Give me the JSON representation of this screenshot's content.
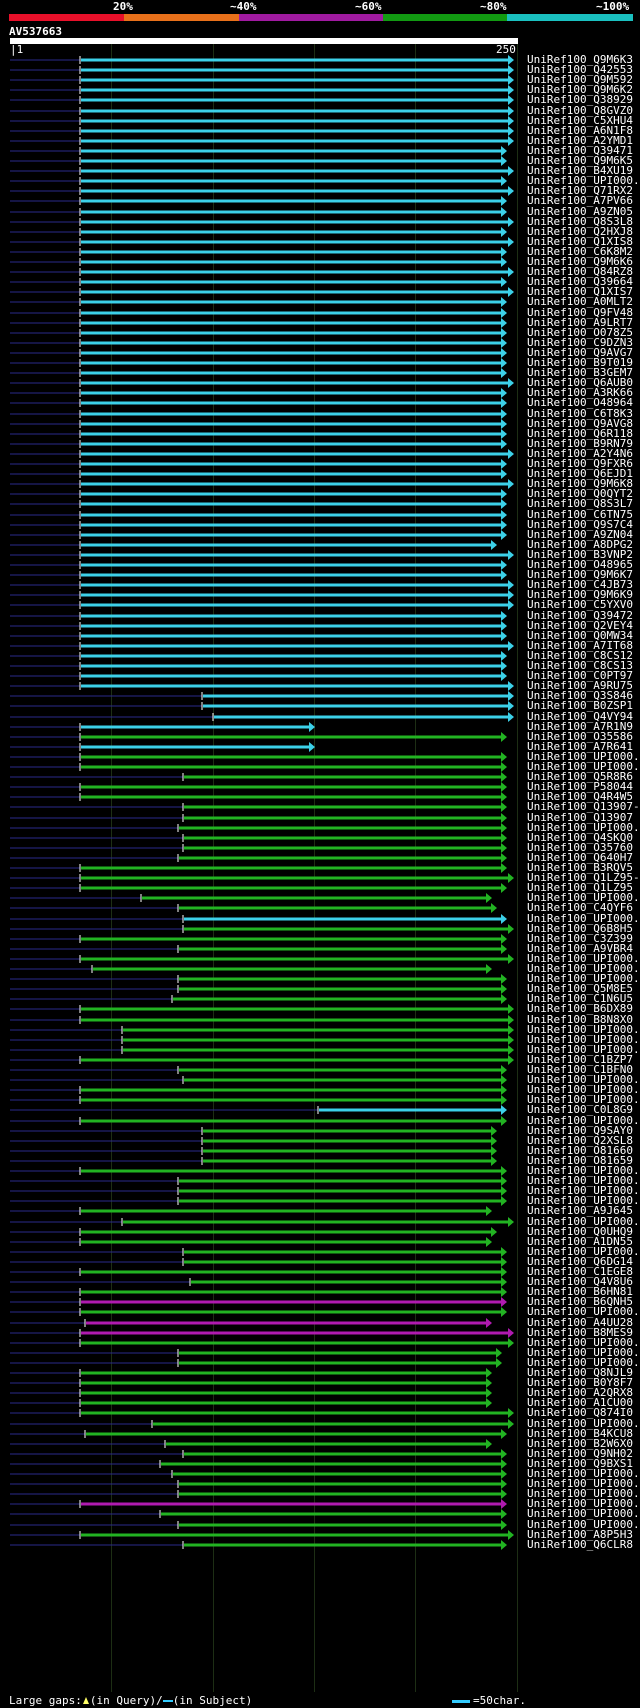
{
  "header": {
    "pct_labels": [
      "20%",
      "~40%",
      "~60%",
      "~80%",
      "~100%"
    ],
    "pct_colors": [
      "#e8102a",
      "#e8701a",
      "#a01aa0",
      "#129a12",
      "#1ac0c0"
    ],
    "query_name": "AV537663",
    "scale_start": "1",
    "scale_end": "250"
  },
  "legend": {
    "large_gaps": "Large gaps:",
    "in_query": "(in Query)/",
    "in_subject": "(in Subject)",
    "scale_note": "=50char."
  },
  "hits": [
    [
      "UniRef100_Q9M6K3",
      80,
      514,
      "c"
    ],
    [
      "UniRef100_Q42553",
      80,
      514,
      "c"
    ],
    [
      "UniRef100_Q9M592",
      80,
      514,
      "c"
    ],
    [
      "UniRef100_Q9M6K2",
      80,
      514,
      "c"
    ],
    [
      "UniRef100_Q38929",
      80,
      514,
      "c"
    ],
    [
      "UniRef100_Q8GVZ0",
      80,
      514,
      "c"
    ],
    [
      "UniRef100_C5XHU4",
      80,
      514,
      "c"
    ],
    [
      "UniRef100_A6N1F8",
      80,
      514,
      "c"
    ],
    [
      "UniRef100_A2YMD1",
      80,
      514,
      "c"
    ],
    [
      "UniRef100_Q39471",
      80,
      507,
      "c"
    ],
    [
      "UniRef100_Q9M6K5",
      80,
      507,
      "c"
    ],
    [
      "UniRef100_B4XU19",
      80,
      514,
      "c"
    ],
    [
      "UniRef100_UPI000...",
      80,
      507,
      "c"
    ],
    [
      "UniRef100_Q71RX2",
      80,
      514,
      "c"
    ],
    [
      "UniRef100_A7PV66",
      80,
      507,
      "c"
    ],
    [
      "UniRef100_A9ZN05",
      80,
      507,
      "c"
    ],
    [
      "UniRef100_Q8S3L8",
      80,
      514,
      "c"
    ],
    [
      "UniRef100_Q2HXJ8",
      80,
      507,
      "c"
    ],
    [
      "UniRef100_Q1XIS8",
      80,
      514,
      "c"
    ],
    [
      "UniRef100_C6K8M2",
      80,
      507,
      "c"
    ],
    [
      "UniRef100_Q9M6K6",
      80,
      507,
      "c"
    ],
    [
      "UniRef100_Q84RZ8",
      80,
      514,
      "c"
    ],
    [
      "UniRef100_Q39664",
      80,
      507,
      "c"
    ],
    [
      "UniRef100_Q1XIS7",
      80,
      514,
      "c"
    ],
    [
      "UniRef100_A0MLT2",
      80,
      507,
      "c"
    ],
    [
      "UniRef100_Q9FV48",
      80,
      507,
      "c"
    ],
    [
      "UniRef100_A9LRT7",
      80,
      507,
      "c"
    ],
    [
      "UniRef100_O078Z5",
      80,
      507,
      "c"
    ],
    [
      "UniRef100_C9DZN3",
      80,
      507,
      "c"
    ],
    [
      "UniRef100_Q9AVG7",
      80,
      507,
      "c"
    ],
    [
      "UniRef100_B9T019",
      80,
      507,
      "c"
    ],
    [
      "UniRef100_B3GEM7",
      80,
      507,
      "c"
    ],
    [
      "UniRef100_Q6AUB0",
      80,
      514,
      "c"
    ],
    [
      "UniRef100_A3RK66",
      80,
      507,
      "c"
    ],
    [
      "UniRef100_O48964",
      80,
      507,
      "c"
    ],
    [
      "UniRef100_C6T8K3",
      80,
      507,
      "c"
    ],
    [
      "UniRef100_Q9AVG8",
      80,
      507,
      "c"
    ],
    [
      "UniRef100_Q6R118",
      80,
      507,
      "c"
    ],
    [
      "UniRef100_B9RN79",
      80,
      507,
      "c"
    ],
    [
      "UniRef100_A2Y4N6",
      80,
      514,
      "c"
    ],
    [
      "UniRef100_Q9FXR6",
      80,
      507,
      "c"
    ],
    [
      "UniRef100_Q6EJD1",
      80,
      507,
      "c"
    ],
    [
      "UniRef100_Q9M6K8",
      80,
      514,
      "c"
    ],
    [
      "UniRef100_Q0QYT2",
      80,
      507,
      "c"
    ],
    [
      "UniRef100_Q8S3L7",
      80,
      507,
      "c"
    ],
    [
      "UniRef100_C6TN75",
      80,
      507,
      "c"
    ],
    [
      "UniRef100_Q9S7C4",
      80,
      507,
      "c"
    ],
    [
      "UniRef100_A9ZN04",
      80,
      507,
      "c"
    ],
    [
      "UniRef100_A8DPG2",
      80,
      497,
      "c"
    ],
    [
      "UniRef100_B3VNP2",
      80,
      514,
      "c"
    ],
    [
      "UniRef100_O48965",
      80,
      507,
      "c"
    ],
    [
      "UniRef100_Q9M6K7",
      80,
      507,
      "c"
    ],
    [
      "UniRef100_C4JB73",
      80,
      514,
      "c"
    ],
    [
      "UniRef100_Q9M6K9",
      80,
      514,
      "c"
    ],
    [
      "UniRef100_C5YXV0",
      80,
      514,
      "c"
    ],
    [
      "UniRef100_Q39472",
      80,
      507,
      "c"
    ],
    [
      "UniRef100_Q2VEY4",
      80,
      507,
      "c"
    ],
    [
      "UniRef100_Q0MW34",
      80,
      507,
      "c"
    ],
    [
      "UniRef100_A7IT68",
      80,
      514,
      "c"
    ],
    [
      "UniRef100_C8CS12",
      80,
      507,
      "c"
    ],
    [
      "UniRef100_C8CS13",
      80,
      507,
      "c"
    ],
    [
      "UniRef100_C0PT97",
      80,
      507,
      "c"
    ],
    [
      "UniRef100_A9RU75",
      80,
      514,
      "c"
    ],
    [
      "UniRef100_Q3S846",
      202,
      514,
      "c"
    ],
    [
      "UniRef100_B0ZSP1",
      202,
      514,
      "c"
    ],
    [
      "UniRef100_Q4VY94",
      213,
      514,
      "c"
    ],
    [
      "UniRef100_A7R1N9",
      80,
      315,
      "c"
    ],
    [
      "UniRef100_O35586",
      80,
      507,
      "g"
    ],
    [
      "UniRef100_A7R641",
      80,
      315,
      "c"
    ],
    [
      "UniRef100_UPI000...",
      80,
      507,
      "g"
    ],
    [
      "UniRef100_UPI000...",
      80,
      507,
      "g"
    ],
    [
      "UniRef100_Q5R8R6",
      183,
      507,
      "g"
    ],
    [
      "UniRef100_P58044",
      80,
      507,
      "g"
    ],
    [
      "UniRef100_Q4R4W5",
      80,
      507,
      "g"
    ],
    [
      "UniRef100_Q13907-2",
      183,
      507,
      "g"
    ],
    [
      "UniRef100_Q13907",
      183,
      507,
      "g"
    ],
    [
      "UniRef100_UPI000...",
      178,
      507,
      "g"
    ],
    [
      "UniRef100_Q4SKQ0",
      183,
      507,
      "g"
    ],
    [
      "UniRef100_O35760",
      183,
      507,
      "g"
    ],
    [
      "UniRef100_Q640H7",
      178,
      507,
      "g"
    ],
    [
      "UniRef100_B3RQV5",
      80,
      507,
      "g"
    ],
    [
      "UniRef100_Q1LZ95-2",
      80,
      514,
      "g"
    ],
    [
      "UniRef100_Q1LZ95",
      80,
      507,
      "g"
    ],
    [
      "UniRef100_UPI000...",
      141,
      492,
      "g"
    ],
    [
      "UniRef100_C4QYF6",
      178,
      497,
      "g"
    ],
    [
      "UniRef100_UPI000...",
      183,
      507,
      "c"
    ],
    [
      "UniRef100_Q6B8H5",
      183,
      514,
      "g"
    ],
    [
      "UniRef100_C3Z399",
      80,
      507,
      "g"
    ],
    [
      "UniRef100_A9VBR4",
      178,
      507,
      "g"
    ],
    [
      "UniRef100_UPI000...",
      80,
      514,
      "g"
    ],
    [
      "UniRef100_UPI000...",
      92,
      492,
      "g"
    ],
    [
      "UniRef100_UPI000...",
      178,
      507,
      "g"
    ],
    [
      "UniRef100_Q5M8E5",
      178,
      507,
      "g"
    ],
    [
      "UniRef100_C1N6U5",
      172,
      507,
      "g"
    ],
    [
      "UniRef100_B6DX89",
      80,
      514,
      "g"
    ],
    [
      "UniRef100_B8N8X0",
      80,
      514,
      "g"
    ],
    [
      "UniRef100_UPI000...",
      122,
      514,
      "g"
    ],
    [
      "UniRef100_UPI000...",
      122,
      514,
      "g"
    ],
    [
      "UniRef100_UPI000...",
      122,
      514,
      "g"
    ],
    [
      "UniRef100_C1BZP7",
      80,
      514,
      "g"
    ],
    [
      "UniRef100_C1BFN0",
      178,
      507,
      "g"
    ],
    [
      "UniRef100_UPI000...",
      183,
      507,
      "g"
    ],
    [
      "UniRef100_UPI000...",
      80,
      507,
      "g"
    ],
    [
      "UniRef100_UPI000...",
      80,
      507,
      "g"
    ],
    [
      "UniRef100_C0L8G9",
      318,
      507,
      "c"
    ],
    [
      "UniRef100_UPI000...",
      80,
      507,
      "g"
    ],
    [
      "UniRef100_Q9SAY0",
      202,
      497,
      "g"
    ],
    [
      "UniRef100_Q2XSL8",
      202,
      497,
      "g"
    ],
    [
      "UniRef100_O81660",
      202,
      497,
      "g"
    ],
    [
      "UniRef100_O81659",
      202,
      497,
      "g"
    ],
    [
      "UniRef100_UPI000...",
      80,
      507,
      "g"
    ],
    [
      "UniRef100_UPI000...",
      178,
      507,
      "g"
    ],
    [
      "UniRef100_UPI000...",
      178,
      507,
      "g"
    ],
    [
      "UniRef100_UPI000...",
      178,
      507,
      "g"
    ],
    [
      "UniRef100_A9J645",
      80,
      492,
      "g"
    ],
    [
      "UniRef100_UPI000...",
      122,
      514,
      "g"
    ],
    [
      "UniRef100_Q0UHQ9",
      80,
      497,
      "g"
    ],
    [
      "UniRef100_A1DN55",
      80,
      492,
      "g"
    ],
    [
      "UniRef100_UPI000...",
      183,
      507,
      "g"
    ],
    [
      "UniRef100_Q6DG14",
      183,
      507,
      "g"
    ],
    [
      "UniRef100_C1EGE8",
      80,
      507,
      "g"
    ],
    [
      "UniRef100_Q4V8U6",
      190,
      507,
      "g"
    ],
    [
      "UniRef100_B6HN81",
      80,
      507,
      "g"
    ],
    [
      "UniRef100_B6QNH5",
      80,
      507,
      "m"
    ],
    [
      "UniRef100_UPI000...",
      80,
      507,
      "g"
    ],
    [
      "UniRef100_A4UU28",
      85,
      492,
      "m"
    ],
    [
      "UniRef100_B8MES9",
      80,
      514,
      "m"
    ],
    [
      "UniRef100_UPI000...",
      80,
      514,
      "g"
    ],
    [
      "UniRef100_UPI000...",
      178,
      502,
      "g"
    ],
    [
      "UniRef100_UPI000...",
      178,
      502,
      "g"
    ],
    [
      "UniRef100_Q8NJL9",
      80,
      492,
      "g"
    ],
    [
      "UniRef100_B0Y8F7",
      80,
      492,
      "g"
    ],
    [
      "UniRef100_A2QRX8",
      80,
      492,
      "g"
    ],
    [
      "UniRef100_A1CU00",
      80,
      492,
      "g"
    ],
    [
      "UniRef100_Q874I0",
      80,
      514,
      "g"
    ],
    [
      "UniRef100_UPI000...",
      152,
      514,
      "g"
    ],
    [
      "UniRef100_B4KCU8",
      85,
      507,
      "g"
    ],
    [
      "UniRef100_B2W6X0",
      165,
      492,
      "g"
    ],
    [
      "UniRef100_Q9NH02",
      183,
      507,
      "g"
    ],
    [
      "UniRef100_Q9BXS1",
      160,
      507,
      "g"
    ],
    [
      "UniRef100_UPI000...",
      172,
      507,
      "g"
    ],
    [
      "UniRef100_UPI000...",
      178,
      507,
      "g"
    ],
    [
      "UniRef100_UPI000...",
      178,
      507,
      "g"
    ],
    [
      "UniRef100_UPI000...",
      80,
      507,
      "m"
    ],
    [
      "UniRef100_UPI000...",
      160,
      507,
      "g"
    ],
    [
      "UniRef100_UPI000...",
      178,
      507,
      "g"
    ],
    [
      "UniRef100_A8P5H3",
      80,
      514,
      "g"
    ],
    [
      "UniRef100_Q6CLR8",
      183,
      507,
      "g"
    ]
  ]
}
